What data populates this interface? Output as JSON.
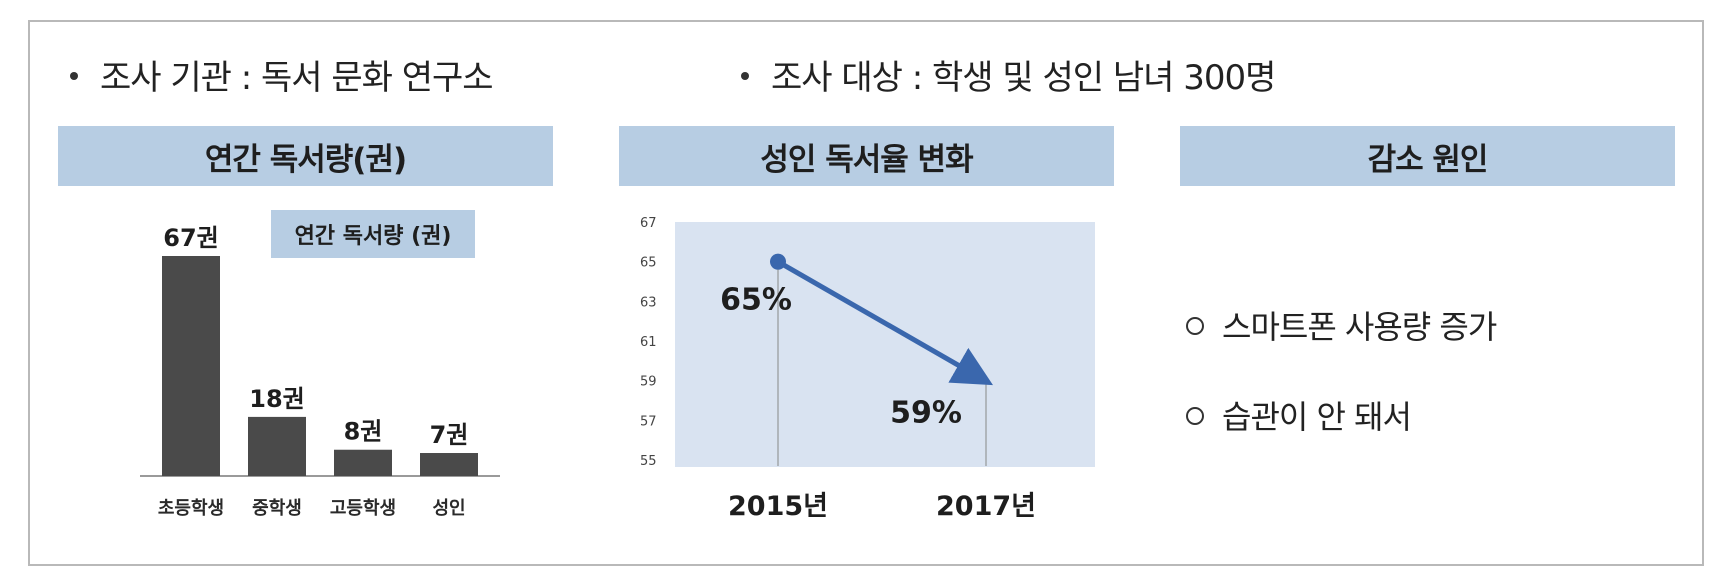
{
  "header": {
    "survey_org": "조사 기관 : 독서 문화 연구소",
    "survey_target": "조사 대상 : 학생 및 성인 남녀 300명"
  },
  "panels": {
    "left_title": "연간 독서량(권)",
    "middle_title": "성인 독서율 변화",
    "right_title": "감소 원인"
  },
  "reasons": [
    "스마트폰 사용량 증가",
    "습관이 안 돼서"
  ],
  "colors": {
    "header_bg": "#b7cde3",
    "bar": "#4a4a4a",
    "plot_bg": "#d9e3f1",
    "line": "#3a67ad"
  },
  "chart_data": [
    {
      "type": "bar",
      "legend": "연간 독서량  (권)",
      "categories": [
        "초등학생",
        "중학생",
        "고등학생",
        "성인"
      ],
      "values": [
        67,
        18,
        8,
        7
      ],
      "data_labels": [
        "67권",
        "18권",
        "8권",
        "7권"
      ],
      "ylim": [
        0,
        67
      ]
    },
    {
      "type": "line",
      "x": [
        "2015년",
        "2017년"
      ],
      "values": [
        65,
        59
      ],
      "data_labels": [
        "65%",
        "59%"
      ],
      "ylim": [
        55,
        67
      ],
      "yticks": [
        "67",
        "65",
        "63",
        "61",
        "59",
        "57",
        "55"
      ]
    }
  ]
}
